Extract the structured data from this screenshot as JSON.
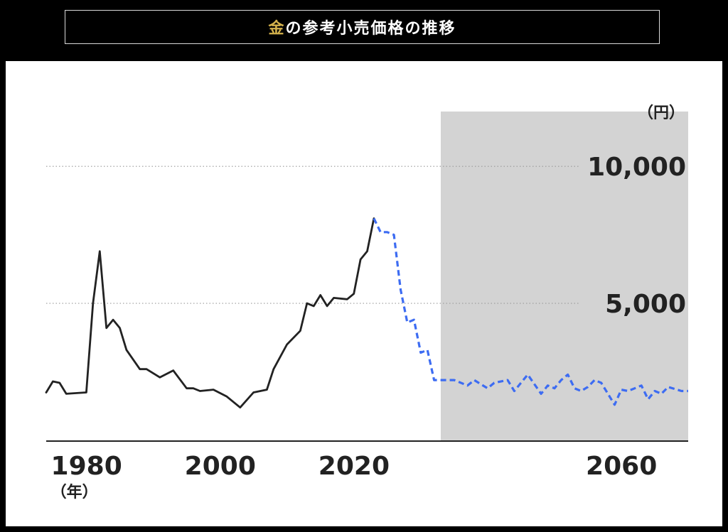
{
  "title": {
    "accent": "金",
    "rest": "の参考小売価格の推移"
  },
  "colors": {
    "background": "#000000",
    "panel": "#ffffff",
    "forecast_shade": "#d3d3d3",
    "actual_line": "#222222",
    "forecast_line": "#3d6cf2",
    "title_accent": "#d4b24c"
  },
  "chart_data": {
    "type": "line",
    "title": "金の参考小売価格の推移",
    "xlabel": "（年）",
    "ylabel": "（円）",
    "xlim": [
      1971,
      2067
    ],
    "ylim": [
      0,
      12000
    ],
    "x_ticks": [
      {
        "value": 1980,
        "label": "1980"
      },
      {
        "value": 2000,
        "label": "2000"
      },
      {
        "value": 2020,
        "label": "2020"
      },
      {
        "value": 2060,
        "label": "2060"
      }
    ],
    "y_ticks": [
      {
        "value": 5000,
        "label": "5,000"
      },
      {
        "value": 10000,
        "label": "10,000"
      }
    ],
    "grid": "horizontal-dotted",
    "forecast_region": [
      2030,
      2067
    ],
    "series": [
      {
        "style": "solid",
        "x": [
          1971,
          1972,
          1973,
          1974,
          1977,
          1978,
          1979,
          1980,
          1981,
          1982,
          1983,
          1985,
          1986,
          1988,
          1990,
          1992,
          1993,
          1994,
          1996,
          1998,
          2000,
          2002,
          2004,
          2005,
          2007,
          2009,
          2010,
          2011,
          2012,
          2013,
          2014,
          2016,
          2017,
          2018,
          2019,
          2020
        ],
        "values": [
          1750,
          2150,
          2100,
          1700,
          1750,
          5000,
          6900,
          4100,
          4400,
          4100,
          3300,
          2600,
          2600,
          2300,
          2550,
          1900,
          1900,
          1800,
          1850,
          1600,
          1200,
          1750,
          1850,
          2600,
          3500,
          4000,
          5000,
          4900,
          5300,
          4900,
          5200,
          5150,
          5350,
          6600,
          6900,
          8100
        ]
      },
      {
        "style": "dashed",
        "x": [
          2020,
          2021,
          2022,
          2023,
          2024,
          2025,
          2026,
          2027,
          2028,
          2029,
          2030,
          2031,
          2032,
          2034,
          2035,
          2037,
          2038,
          2040,
          2041,
          2042,
          2043,
          2045,
          2046,
          2047,
          2048,
          2049,
          2050,
          2051,
          2052,
          2053,
          2054,
          2056,
          2057,
          2058,
          2059,
          2060,
          2061,
          2062,
          2063,
          2064,
          2066,
          2067
        ],
        "values": [
          8100,
          7600,
          7600,
          7500,
          5500,
          4300,
          4400,
          3200,
          3300,
          2200,
          2200,
          2200,
          2200,
          2000,
          2200,
          1900,
          2100,
          2200,
          1800,
          2100,
          2400,
          1700,
          2000,
          1900,
          2200,
          2400,
          1900,
          1800,
          1950,
          2200,
          2100,
          1300,
          1850,
          1800,
          1900,
          2000,
          1500,
          1800,
          1700,
          1950,
          1800,
          1800
        ]
      }
    ]
  }
}
